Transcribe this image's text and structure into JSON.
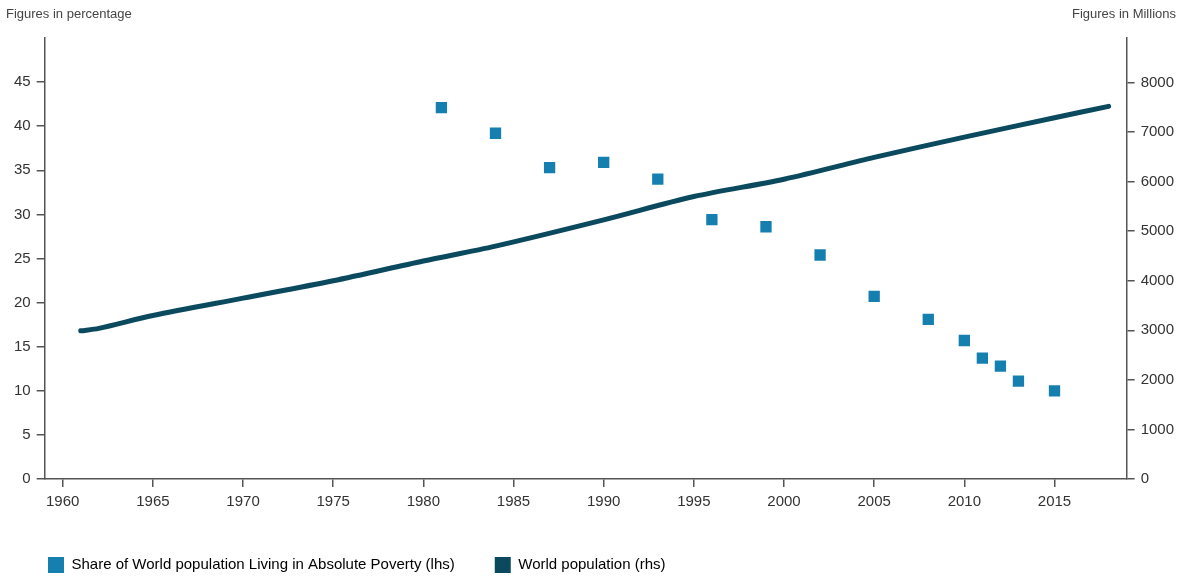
{
  "chart_data": {
    "type": "scatter",
    "ylabel": "Figures in percentage",
    "y2label": "Figures in Millions",
    "xlim": [
      1959,
      2019
    ],
    "xticks": [
      1960,
      1965,
      1970,
      1975,
      1980,
      1985,
      1990,
      1995,
      2000,
      2005,
      2010,
      2015
    ],
    "ylim": [
      0,
      50
    ],
    "yticks": [
      0,
      5,
      10,
      15,
      20,
      25,
      30,
      35,
      40,
      45
    ],
    "y2lim": [
      0,
      8900
    ],
    "y2ticks": [
      0,
      1000,
      2000,
      3000,
      4000,
      5000,
      6000,
      7000,
      8000
    ],
    "grid": false,
    "legend": "bottom-left",
    "series": [
      {
        "name": "Share of World population Living in Absolute Poverty (lhs)",
        "type": "scatter",
        "marker": "square",
        "color": "#1580b0",
        "x": [
          1981,
          1984,
          1987,
          1990,
          1993,
          1996,
          1999,
          2002,
          2005,
          2008,
          2010,
          2011,
          2012,
          2013,
          2015
        ],
        "values": [
          42.1,
          39.2,
          35.3,
          35.9,
          34.0,
          29.4,
          28.6,
          25.4,
          20.7,
          18.1,
          15.7,
          13.7,
          12.8,
          11.1,
          10.0
        ]
      },
      {
        "name": "World population (rhs)",
        "type": "line",
        "line_style": "solid",
        "color": "#0b4a5e",
        "axis": "y2",
        "x": [
          1961,
          1962,
          1965,
          1970,
          1975,
          1980,
          1984,
          1990,
          1995,
          2000,
          2005,
          2010,
          2015,
          2018
        ],
        "values": [
          2990,
          3040,
          3300,
          3650,
          4000,
          4400,
          4700,
          5230,
          5700,
          6050,
          6490,
          6900,
          7290,
          7520
        ]
      }
    ]
  }
}
